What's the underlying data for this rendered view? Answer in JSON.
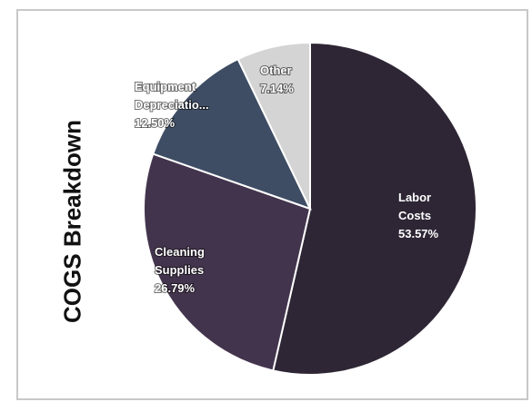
{
  "chart_data": {
    "type": "pie",
    "title": "COGS Breakdown",
    "categories": [
      "Labor Costs",
      "Cleaning Supplies",
      "Equipment Depreciatio...",
      "Other"
    ],
    "values": [
      53.57,
      26.79,
      12.5,
      7.14
    ],
    "label_text": [
      "53.57%",
      "26.79%",
      "12.50%",
      "7.14%"
    ],
    "colors": [
      "#2e2635",
      "#43344d",
      "#3e4d64",
      "#d4d4d4"
    ],
    "label_lines": [
      [
        "Labor",
        "Costs",
        "53.57%"
      ],
      [
        "Cleaning",
        "Supplies",
        "26.79%"
      ],
      [
        "Equipment",
        "Depreciatio...",
        "12.50%"
      ],
      [
        "Other",
        "7.14%"
      ]
    ]
  }
}
